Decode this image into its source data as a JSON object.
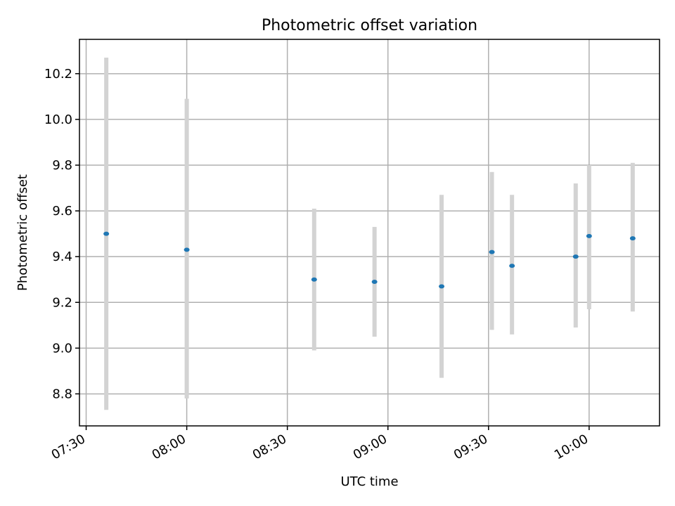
{
  "chart_data": {
    "type": "scatter",
    "title": "Photometric offset variation",
    "xlabel": "UTC time",
    "ylabel": "Photometric offset",
    "x_axis_kind": "time",
    "xlim": [
      "07:28",
      "10:21"
    ],
    "ylim": [
      8.66,
      10.35
    ],
    "x_ticks": [
      "07:30",
      "08:00",
      "08:30",
      "09:00",
      "09:30",
      "10:00"
    ],
    "y_ticks": [
      8.8,
      9.0,
      9.2,
      9.4,
      9.6,
      9.8,
      10.0,
      10.2
    ],
    "y_tick_labels": [
      "8.8",
      "9.0",
      "9.2",
      "9.4",
      "9.6",
      "9.8",
      "10.0",
      "10.2"
    ],
    "grid": true,
    "colors": {
      "marker": "#1f77b4",
      "errorbar": "#d3d3d3",
      "grid": "#b0b0b0"
    },
    "points": [
      {
        "time": "07:36",
        "y": 9.5,
        "err_low": 8.73,
        "err_high": 10.27
      },
      {
        "time": "08:00",
        "y": 9.43,
        "err_low": 8.78,
        "err_high": 10.09
      },
      {
        "time": "08:38",
        "y": 9.3,
        "err_low": 8.99,
        "err_high": 9.61
      },
      {
        "time": "08:56",
        "y": 9.29,
        "err_low": 9.05,
        "err_high": 9.53
      },
      {
        "time": "09:16",
        "y": 9.27,
        "err_low": 8.87,
        "err_high": 9.67
      },
      {
        "time": "09:31",
        "y": 9.42,
        "err_low": 9.08,
        "err_high": 9.77
      },
      {
        "time": "09:37",
        "y": 9.36,
        "err_low": 9.06,
        "err_high": 9.67
      },
      {
        "time": "09:56",
        "y": 9.4,
        "err_low": 9.09,
        "err_high": 9.72
      },
      {
        "time": "10:00",
        "y": 9.49,
        "err_low": 9.17,
        "err_high": 9.8
      },
      {
        "time": "10:13",
        "y": 9.48,
        "err_low": 9.16,
        "err_high": 9.81
      }
    ]
  }
}
